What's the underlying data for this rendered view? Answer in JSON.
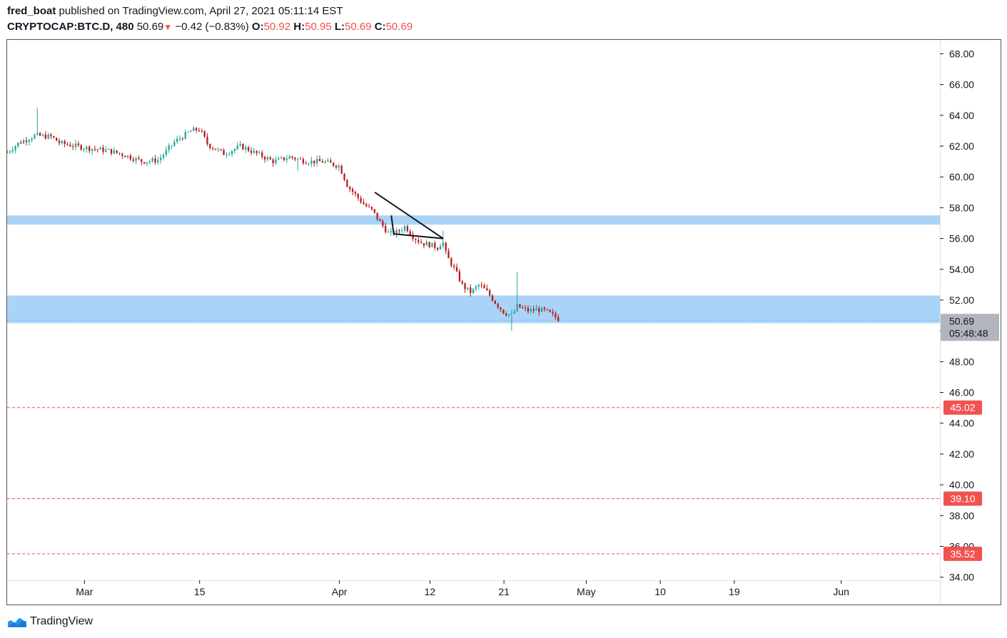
{
  "header": {
    "user": "fred_boat",
    "published_text": "published on TradingView.com, April 27, 2021 05:11:14 EST",
    "symbol": "CRYPTOCAP:BTC.D, 480",
    "last": "50.69",
    "change": "−0.42 (−0.83%)",
    "o_label": "O:",
    "o_value": "50.92",
    "h_label": "H:",
    "h_value": "50.95",
    "l_label": "L:",
    "l_value": "50.69",
    "c_label": "C:",
    "c_value": "50.69"
  },
  "footer": {
    "brand": "TradingView"
  },
  "colors": {
    "up": "#26a69a",
    "down": "#b71c1c",
    "zone": "#aad4f7",
    "level": "#ef5350",
    "price_label_bg": "#b2b5be",
    "grid_border": "#555555",
    "text": "#131722"
  },
  "chart_data": {
    "type": "candlestick",
    "y_axis": {
      "min": 33.8,
      "max": 68.9,
      "ticks": [
        "68.00",
        "66.00",
        "64.00",
        "62.00",
        "60.00",
        "58.00",
        "56.00",
        "54.00",
        "52.00",
        "50.00",
        "48.00",
        "46.00",
        "44.00",
        "42.00",
        "40.00",
        "38.00",
        "36.00",
        "34.00"
      ]
    },
    "x_axis": {
      "labels": [
        {
          "label": "Mar",
          "day": 0
        },
        {
          "label": "15",
          "day": 14
        },
        {
          "label": "Apr",
          "day": 31
        },
        {
          "label": "12",
          "day": 42
        },
        {
          "label": "21",
          "day": 51
        },
        {
          "label": "May",
          "day": 61
        },
        {
          "label": "10",
          "day": 70
        },
        {
          "label": "19",
          "day": 79
        },
        {
          "label": "Jun",
          "day": 92
        }
      ],
      "start_day": -9.4,
      "end_day": 104
    },
    "price_path": [
      [
        -9.4,
        61.6
      ],
      [
        -8,
        62.2
      ],
      [
        -6,
        62.7
      ],
      [
        -4,
        62.6
      ],
      [
        -3,
        62.2
      ],
      [
        0,
        61.9
      ],
      [
        3,
        61.7
      ],
      [
        5,
        61.4
      ],
      [
        7,
        61.0
      ],
      [
        9,
        61.1
      ],
      [
        11,
        62.3
      ],
      [
        13,
        63.0
      ],
      [
        14,
        63.1
      ],
      [
        15,
        62.1
      ],
      [
        17,
        61.5
      ],
      [
        19,
        62.0
      ],
      [
        21,
        61.5
      ],
      [
        23,
        61.0
      ],
      [
        25,
        61.3
      ],
      [
        27,
        61.0
      ],
      [
        29,
        61.0
      ],
      [
        31,
        60.7
      ],
      [
        32,
        59.4
      ],
      [
        33,
        58.8
      ],
      [
        34,
        58.2
      ],
      [
        35,
        57.8
      ],
      [
        36,
        57.0
      ],
      [
        37,
        56.3
      ],
      [
        38,
        56.4
      ],
      [
        39,
        56.8
      ],
      [
        40,
        56.1
      ],
      [
        41,
        55.7
      ],
      [
        42,
        55.6
      ],
      [
        43,
        55.4
      ],
      [
        43.5,
        55.9
      ],
      [
        44,
        54.9
      ],
      [
        45,
        54.0
      ],
      [
        46,
        52.9
      ],
      [
        47,
        52.5
      ],
      [
        48,
        53.0
      ],
      [
        49,
        52.5
      ],
      [
        50,
        51.8
      ],
      [
        51,
        51.2
      ],
      [
        52,
        51.0
      ],
      [
        52.6,
        51.6
      ],
      [
        53,
        51.5
      ],
      [
        54,
        51.3
      ],
      [
        55,
        51.4
      ],
      [
        56,
        51.3
      ],
      [
        57,
        51.0
      ],
      [
        57.8,
        50.69
      ]
    ],
    "spikes": [
      {
        "day": -5.6,
        "high": 64.5
      },
      {
        "day": 25.8,
        "low": 60.4
      },
      {
        "day": 43.5,
        "high": 56.5
      },
      {
        "day": 51.8,
        "low": 50.0
      },
      {
        "day": 52.7,
        "high": 53.8
      }
    ],
    "zones": [
      {
        "from": 56.9,
        "to": 57.5
      },
      {
        "from": 50.5,
        "to": 52.3
      }
    ],
    "levels": [
      {
        "value": 45.02,
        "label": "45.02"
      },
      {
        "value": 39.1,
        "label": "39.10"
      },
      {
        "value": 35.52,
        "label": "35.52"
      }
    ],
    "current": {
      "value": 50.69,
      "label": "50.69",
      "countdown": "05:48:48"
    },
    "drawings": [
      {
        "name": "triangle-upper-line",
        "from": [
          35.3,
          59.0
        ],
        "to": [
          43.6,
          56.0
        ]
      },
      {
        "name": "triangle-lower-line",
        "from": [
          37.6,
          56.3
        ],
        "to": [
          43.6,
          56.0
        ]
      },
      {
        "name": "triangle-left-side",
        "from": [
          37.3,
          57.5
        ],
        "to": [
          37.6,
          56.3
        ]
      }
    ]
  }
}
